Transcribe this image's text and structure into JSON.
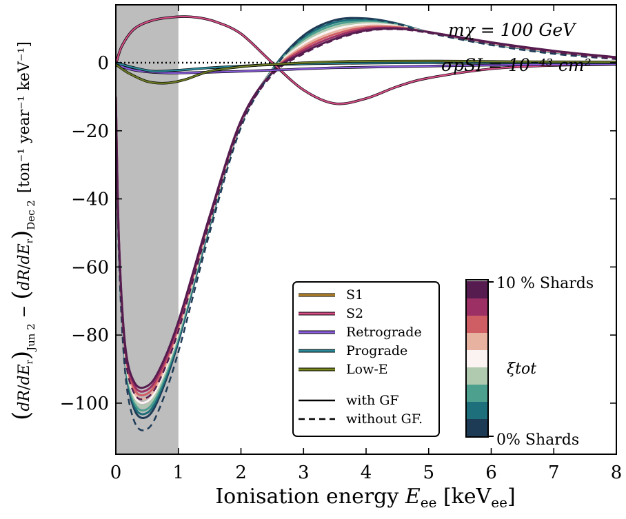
{
  "chart_data": {
    "type": "line",
    "xlabel_main": "Ionisation energy ",
    "xlabel_sym": "E",
    "xlabel_sub": "ee",
    "xlabel_unit": " [keV",
    "xlabel_unit_sub": "ee",
    "xlabel_close": "]",
    "ylabel": {
      "units": "[ton⁻¹ year⁻¹ keV⁻¹]",
      "minus": "−",
      "sub_dec": "Dec 2",
      "sub_jun": "Jun 2",
      "dR": "dR",
      "dEr": "dE"
    },
    "xlim": [
      0,
      8
    ],
    "ylim": [
      -115,
      17
    ],
    "x_ticks": [
      0,
      1,
      2,
      3,
      4,
      5,
      6,
      7,
      8
    ],
    "x_tick_labels": [
      "0",
      "1",
      "2",
      "3",
      "4",
      "5",
      "6",
      "7",
      "8"
    ],
    "y_ticks": [
      0,
      -20,
      -40,
      -60,
      -80,
      -100
    ],
    "y_tick_labels": [
      "0",
      "−20",
      "−40",
      "−60",
      "−80",
      "−100"
    ],
    "shaded_region": [
      0,
      1.0
    ],
    "annotation_mass": "mχ = 100 GeV",
    "annotation_xsec": "σpSI = 10⁻⁴³ cm²",
    "legend": {
      "entries": [
        {
          "label": "S1",
          "color": "#b8862b"
        },
        {
          "label": "S2",
          "color": "#d64d88"
        },
        {
          "label": "Retrograde",
          "color": "#8b5cde"
        },
        {
          "label": "Prograde",
          "color": "#2b8a9a"
        },
        {
          "label": "Low-E",
          "color": "#7a8a1e"
        },
        {
          "label": "with GF",
          "color": "#000000"
        },
        {
          "label": "without GF.",
          "color": "#000000"
        }
      ]
    },
    "colorbar": {
      "label": "ξtot",
      "top_label": "10 % Shards",
      "bottom_label": "0% Shards",
      "colors": [
        "#561c4f",
        "#9c2f64",
        "#cf5e64",
        "#e8b2a0",
        "#fbf3f1",
        "#b0cab0",
        "#4d9f8e",
        "#1c6f7b",
        "#1e3b56"
      ]
    },
    "series": [
      {
        "id": "smhm",
        "xi": 0.0,
        "color": "#1e3b56",
        "x": [
          0,
          0.05,
          0.15,
          0.3,
          0.5,
          0.7,
          1.0,
          1.5,
          2.0,
          2.5,
          3.0,
          3.5,
          4.0,
          4.5,
          5.0,
          6.0,
          7.0,
          8.0
        ],
        "y": [
          -10,
          -55,
          -88,
          -102,
          -104,
          -98,
          -82,
          -48,
          -18,
          -2,
          8,
          12.5,
          13,
          11.5,
          9,
          5.5,
          3,
          1.5
        ]
      },
      {
        "id": "s1",
        "xi": 0.1,
        "color": "#561c4f",
        "x": [
          0,
          0.05,
          0.15,
          0.3,
          0.5,
          0.7,
          1.0,
          1.5,
          2.0,
          2.5,
          3.0,
          3.5,
          4.0,
          4.5,
          5.0,
          6.0,
          7.0,
          8.0
        ],
        "y": [
          -10,
          -52,
          -83,
          -94,
          -95,
          -90,
          -76,
          -45,
          -17,
          -3,
          3,
          7,
          9.5,
          10,
          9,
          6,
          3.5,
          1.6
        ]
      },
      {
        "id": "s2",
        "xi": 0.1,
        "color": "#d64d88",
        "x": [
          0,
          0.1,
          0.3,
          0.6,
          1.0,
          1.3,
          1.6,
          2.0,
          2.5,
          3.0,
          3.5,
          4.0,
          4.5,
          5.0,
          6.0,
          7.0,
          8.0
        ],
        "y": [
          -0.5,
          5,
          10,
          12.5,
          13.5,
          13.3,
          12,
          8.5,
          0,
          -8,
          -12,
          -10.5,
          -7,
          -4.5,
          -1.8,
          -0.8,
          -0.5
        ]
      },
      {
        "id": "retrograde",
        "xi": 0.1,
        "color": "#8b5cde",
        "x": [
          0,
          0.3,
          0.8,
          1.5,
          2.5,
          3.5,
          5.0,
          6.5,
          8.0
        ],
        "y": [
          -0.5,
          -2.2,
          -3,
          -2.8,
          -2.2,
          -1.5,
          -1,
          -0.6,
          -0.4
        ]
      },
      {
        "id": "prograde",
        "xi": 0.1,
        "color": "#2b8a9a",
        "x": [
          0,
          0.3,
          0.6,
          1.0,
          1.5,
          2.0,
          2.5,
          3.5,
          5.0,
          6.5,
          8.0
        ],
        "y": [
          0,
          -1.5,
          -2.5,
          -2.2,
          -1.5,
          -1,
          -0.6,
          -0.2,
          0,
          0,
          0
        ]
      },
      {
        "id": "lowe",
        "xi": 0.1,
        "color": "#6e7d24",
        "x": [
          0,
          0.2,
          0.5,
          0.8,
          1.1,
          1.5,
          2.0,
          2.5,
          3.5,
          5.0,
          6.5,
          8.0
        ],
        "y": [
          -0.5,
          -3,
          -5.5,
          -6,
          -5,
          -2.5,
          -1.2,
          -0.5,
          0.3,
          0.5,
          0.3,
          0.2
        ]
      }
    ]
  }
}
